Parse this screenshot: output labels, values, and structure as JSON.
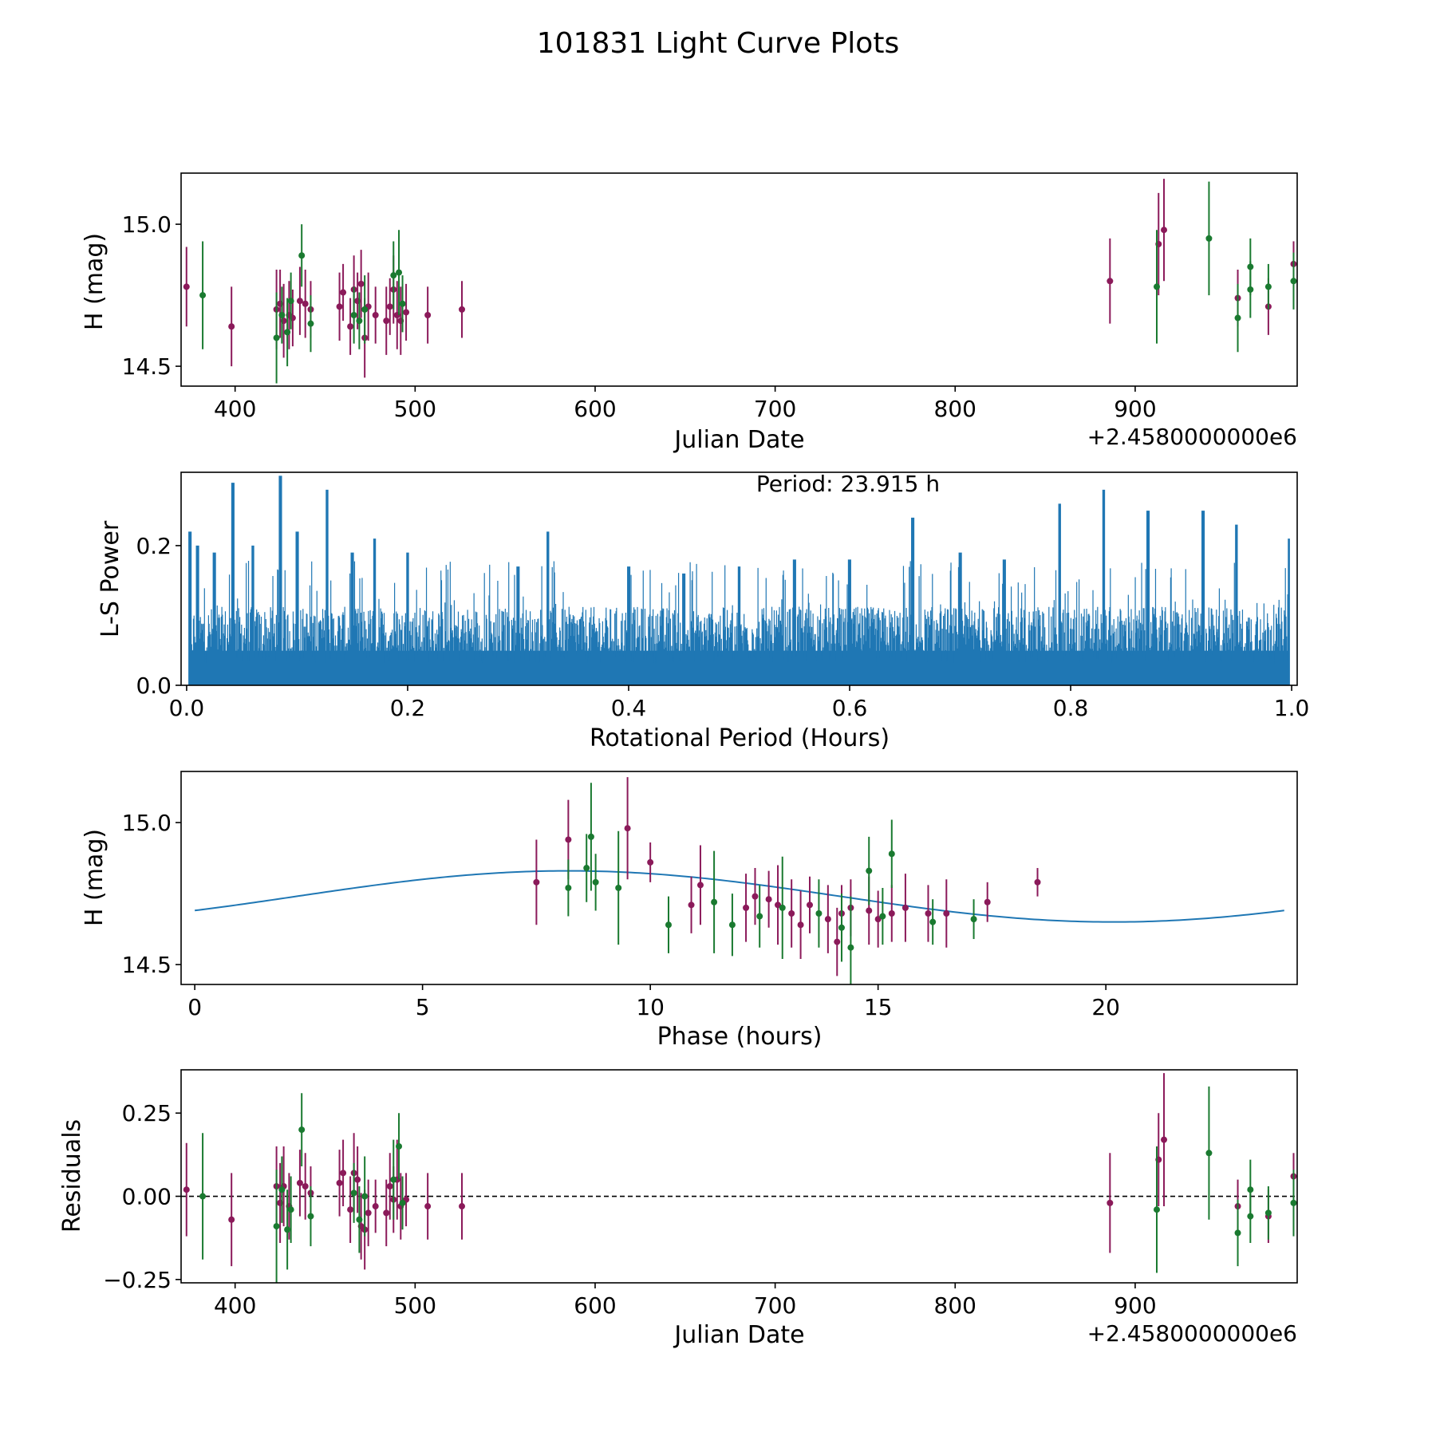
{
  "suptitle": "101831 Light Curve Plots",
  "colors": {
    "purple": "#8B1A5A",
    "green": "#1A7A30",
    "blue": "#1F77B4",
    "black": "#000000"
  },
  "chart_data": [
    {
      "id": "lightcurve",
      "type": "scatter",
      "xlabel": "Julian Date",
      "ylabel": "H (mag)",
      "offset_text": "+2.4580000000e6",
      "xlim": [
        370,
        990
      ],
      "ylim": [
        14.43,
        15.18
      ],
      "xticks": [
        400,
        500,
        600,
        700,
        800,
        900
      ],
      "xtick_labels": [
        "400",
        "500",
        "600",
        "700",
        "800",
        "900"
      ],
      "yticks": [
        14.5,
        15.0
      ],
      "ytick_labels": [
        "14.5",
        "15.0"
      ],
      "series": [
        {
          "name": "band1",
          "color": "purple",
          "points": [
            [
              373,
              14.78,
              0.14
            ],
            [
              398,
              14.64,
              0.14
            ],
            [
              423,
              14.7,
              0.14
            ],
            [
              425,
              14.72,
              0.12
            ],
            [
              427,
              14.66,
              0.13
            ],
            [
              430,
              14.68,
              0.12
            ],
            [
              432,
              14.67,
              0.1
            ],
            [
              436,
              14.73,
              0.12
            ],
            [
              439,
              14.72,
              0.12
            ],
            [
              442,
              14.7,
              0.1
            ],
            [
              458,
              14.71,
              0.12
            ],
            [
              460,
              14.76,
              0.1
            ],
            [
              464,
              14.64,
              0.1
            ],
            [
              466,
              14.77,
              0.12
            ],
            [
              468,
              14.73,
              0.1
            ],
            [
              470,
              14.79,
              0.12
            ],
            [
              472,
              14.6,
              0.14
            ],
            [
              474,
              14.71,
              0.12
            ],
            [
              478,
              14.68,
              0.1
            ],
            [
              484,
              14.66,
              0.12
            ],
            [
              486,
              14.71,
              0.1
            ],
            [
              488,
              14.77,
              0.12
            ],
            [
              490,
              14.68,
              0.12
            ],
            [
              492,
              14.66,
              0.12
            ],
            [
              495,
              14.69,
              0.1
            ],
            [
              507,
              14.68,
              0.1
            ],
            [
              526,
              14.7,
              0.1
            ],
            [
              886,
              14.8,
              0.15
            ],
            [
              913,
              14.93,
              0.18
            ],
            [
              916,
              14.98,
              0.18
            ],
            [
              957,
              14.74,
              0.1
            ],
            [
              974,
              14.71,
              0.1
            ],
            [
              988,
              14.86,
              0.08
            ]
          ]
        },
        {
          "name": "band2",
          "color": "green",
          "points": [
            [
              382,
              14.75,
              0.19
            ],
            [
              423,
              14.6,
              0.16
            ],
            [
              426,
              14.68,
              0.1
            ],
            [
              429,
              14.62,
              0.12
            ],
            [
              431,
              14.73,
              0.1
            ],
            [
              437,
              14.89,
              0.11
            ],
            [
              442,
              14.65,
              0.1
            ],
            [
              466,
              14.68,
              0.1
            ],
            [
              469,
              14.66,
              0.1
            ],
            [
              472,
              14.7,
              0.12
            ],
            [
              488,
              14.82,
              0.12
            ],
            [
              491,
              14.83,
              0.15
            ],
            [
              493,
              14.72,
              0.1
            ],
            [
              912,
              14.78,
              0.2
            ],
            [
              941,
              14.95,
              0.2
            ],
            [
              957,
              14.67,
              0.12
            ],
            [
              964,
              14.85,
              0.1
            ],
            [
              964,
              14.77,
              0.1
            ],
            [
              974,
              14.78,
              0.08
            ],
            [
              988,
              14.8,
              0.1
            ]
          ]
        }
      ]
    },
    {
      "id": "periodogram",
      "type": "line",
      "xlabel": "Rotational Period (Hours)",
      "ylabel": "L-S Power",
      "annotation": "Period: 23.915 h",
      "xlim": [
        -0.005,
        1.005
      ],
      "ylim": [
        0,
        0.305
      ],
      "xticks": [
        0.0,
        0.2,
        0.4,
        0.6,
        0.8,
        1.0
      ],
      "xtick_labels": [
        "0.0",
        "0.2",
        "0.4",
        "0.6",
        "0.8",
        "1.0"
      ],
      "yticks": [
        0.0,
        0.2
      ],
      "ytick_labels": [
        "0.0",
        "0.2"
      ],
      "series": [
        {
          "name": "L-S power",
          "color": "blue",
          "base_level": 0.09,
          "peaks": [
            [
              0.003,
              0.22
            ],
            [
              0.01,
              0.2
            ],
            [
              0.025,
              0.19
            ],
            [
              0.042,
              0.29
            ],
            [
              0.06,
              0.2
            ],
            [
              0.085,
              0.3
            ],
            [
              0.1,
              0.22
            ],
            [
              0.127,
              0.28
            ],
            [
              0.15,
              0.19
            ],
            [
              0.17,
              0.21
            ],
            [
              0.2,
              0.19
            ],
            [
              0.3,
              0.17
            ],
            [
              0.327,
              0.22
            ],
            [
              0.4,
              0.17
            ],
            [
              0.45,
              0.16
            ],
            [
              0.5,
              0.17
            ],
            [
              0.55,
              0.18
            ],
            [
              0.6,
              0.18
            ],
            [
              0.657,
              0.24
            ],
            [
              0.7,
              0.19
            ],
            [
              0.74,
              0.18
            ],
            [
              0.79,
              0.26
            ],
            [
              0.83,
              0.28
            ],
            [
              0.87,
              0.25
            ],
            [
              0.92,
              0.25
            ],
            [
              0.95,
              0.23
            ],
            [
              0.998,
              0.21
            ]
          ]
        }
      ]
    },
    {
      "id": "phased",
      "type": "scatter",
      "xlabel": "Phase (hours)",
      "ylabel": "H (mag)",
      "xlim": [
        -0.3,
        24.2
      ],
      "ylim": [
        14.43,
        15.18
      ],
      "xticks": [
        0,
        5,
        10,
        15,
        20
      ],
      "xtick_labels": [
        "0",
        "5",
        "10",
        "15",
        "20"
      ],
      "yticks": [
        14.5,
        15.0
      ],
      "ytick_labels": [
        "14.5",
        "15.0"
      ],
      "model": {
        "color": "blue",
        "mean": 14.74,
        "amplitude": 0.09,
        "peak_phase": 8.2,
        "period": 23.915
      },
      "series": [
        {
          "name": "band1",
          "color": "purple",
          "points": [
            [
              7.5,
              14.79,
              0.15
            ],
            [
              8.2,
              14.94,
              0.14
            ],
            [
              9.5,
              14.98,
              0.18
            ],
            [
              10.0,
              14.86,
              0.07
            ],
            [
              10.9,
              14.71,
              0.1
            ],
            [
              11.1,
              14.78,
              0.14
            ],
            [
              12.1,
              14.7,
              0.12
            ],
            [
              12.3,
              14.74,
              0.1
            ],
            [
              12.6,
              14.73,
              0.1
            ],
            [
              12.8,
              14.71,
              0.14
            ],
            [
              13.1,
              14.68,
              0.12
            ],
            [
              13.3,
              14.64,
              0.12
            ],
            [
              13.5,
              14.71,
              0.1
            ],
            [
              13.9,
              14.66,
              0.12
            ],
            [
              14.1,
              14.58,
              0.12
            ],
            [
              14.2,
              14.68,
              0.1
            ],
            [
              14.4,
              14.7,
              0.1
            ],
            [
              14.8,
              14.69,
              0.12
            ],
            [
              15.0,
              14.66,
              0.1
            ],
            [
              15.3,
              14.68,
              0.1
            ],
            [
              15.6,
              14.7,
              0.12
            ],
            [
              16.1,
              14.68,
              0.1
            ],
            [
              16.5,
              14.68,
              0.12
            ],
            [
              17.4,
              14.72,
              0.07
            ],
            [
              18.5,
              14.79,
              0.05
            ]
          ]
        },
        {
          "name": "band2",
          "color": "green",
          "points": [
            [
              8.2,
              14.77,
              0.1
            ],
            [
              8.6,
              14.84,
              0.12
            ],
            [
              8.7,
              14.95,
              0.19
            ],
            [
              8.8,
              14.79,
              0.1
            ],
            [
              9.3,
              14.77,
              0.2
            ],
            [
              10.4,
              14.64,
              0.1
            ],
            [
              11.4,
              14.72,
              0.18
            ],
            [
              11.8,
              14.64,
              0.11
            ],
            [
              12.4,
              14.67,
              0.11
            ],
            [
              12.9,
              14.7,
              0.18
            ],
            [
              13.7,
              14.68,
              0.12
            ],
            [
              14.2,
              14.63,
              0.12
            ],
            [
              14.4,
              14.56,
              0.18
            ],
            [
              14.8,
              14.83,
              0.12
            ],
            [
              15.1,
              14.67,
              0.1
            ],
            [
              15.3,
              14.89,
              0.12
            ],
            [
              16.2,
              14.65,
              0.08
            ],
            [
              17.1,
              14.66,
              0.07
            ]
          ]
        }
      ]
    },
    {
      "id": "residuals",
      "type": "scatter",
      "xlabel": "Julian Date",
      "ylabel": "Residuals",
      "offset_text": "+2.4580000000e6",
      "xlim": [
        370,
        990
      ],
      "ylim": [
        -0.26,
        0.38
      ],
      "xticks": [
        400,
        500,
        600,
        700,
        800,
        900
      ],
      "xtick_labels": [
        "400",
        "500",
        "600",
        "700",
        "800",
        "900"
      ],
      "yticks": [
        -0.25,
        0.0,
        0.25
      ],
      "ytick_labels": [
        "−0.25",
        "0.00",
        "0.25"
      ],
      "zero_line": true,
      "series": [
        {
          "name": "band1",
          "color": "purple",
          "points": [
            [
              373,
              0.02,
              0.14
            ],
            [
              398,
              -0.07,
              0.14
            ],
            [
              423,
              0.03,
              0.12
            ],
            [
              425,
              -0.02,
              0.12
            ],
            [
              427,
              0.03,
              0.12
            ],
            [
              430,
              -0.03,
              0.1
            ],
            [
              436,
              0.04,
              0.1
            ],
            [
              439,
              0.03,
              0.1
            ],
            [
              442,
              0.01,
              0.08
            ],
            [
              458,
              0.04,
              0.1
            ],
            [
              460,
              0.07,
              0.1
            ],
            [
              464,
              -0.04,
              0.1
            ],
            [
              466,
              0.07,
              0.12
            ],
            [
              468,
              0.05,
              0.1
            ],
            [
              470,
              -0.09,
              0.1
            ],
            [
              472,
              -0.1,
              0.12
            ],
            [
              474,
              -0.05,
              0.1
            ],
            [
              478,
              -0.03,
              0.08
            ],
            [
              484,
              -0.05,
              0.1
            ],
            [
              486,
              0.03,
              0.1
            ],
            [
              488,
              -0.01,
              0.1
            ],
            [
              490,
              0.05,
              0.12
            ],
            [
              492,
              -0.03,
              0.1
            ],
            [
              495,
              -0.01,
              0.08
            ],
            [
              507,
              -0.03,
              0.1
            ],
            [
              526,
              -0.03,
              0.1
            ],
            [
              886,
              -0.02,
              0.15
            ],
            [
              913,
              0.11,
              0.14
            ],
            [
              916,
              0.17,
              0.2
            ],
            [
              957,
              -0.03,
              0.08
            ],
            [
              974,
              -0.06,
              0.08
            ],
            [
              988,
              0.06,
              0.07
            ]
          ]
        },
        {
          "name": "band2",
          "color": "green",
          "points": [
            [
              382,
              0.0,
              0.19
            ],
            [
              423,
              -0.09,
              0.17
            ],
            [
              426,
              0.02,
              0.1
            ],
            [
              429,
              -0.1,
              0.12
            ],
            [
              431,
              -0.04,
              0.1
            ],
            [
              437,
              0.2,
              0.11
            ],
            [
              442,
              -0.06,
              0.09
            ],
            [
              466,
              0.01,
              0.09
            ],
            [
              469,
              -0.07,
              0.1
            ],
            [
              472,
              0.0,
              0.12
            ],
            [
              488,
              0.05,
              0.12
            ],
            [
              491,
              0.15,
              0.1
            ],
            [
              493,
              -0.02,
              0.08
            ],
            [
              912,
              -0.04,
              0.19
            ],
            [
              941,
              0.13,
              0.2
            ],
            [
              957,
              -0.11,
              0.1
            ],
            [
              964,
              0.02,
              0.09
            ],
            [
              964,
              -0.06,
              0.08
            ],
            [
              974,
              -0.05,
              0.08
            ],
            [
              988,
              -0.02,
              0.1
            ]
          ]
        }
      ]
    }
  ]
}
